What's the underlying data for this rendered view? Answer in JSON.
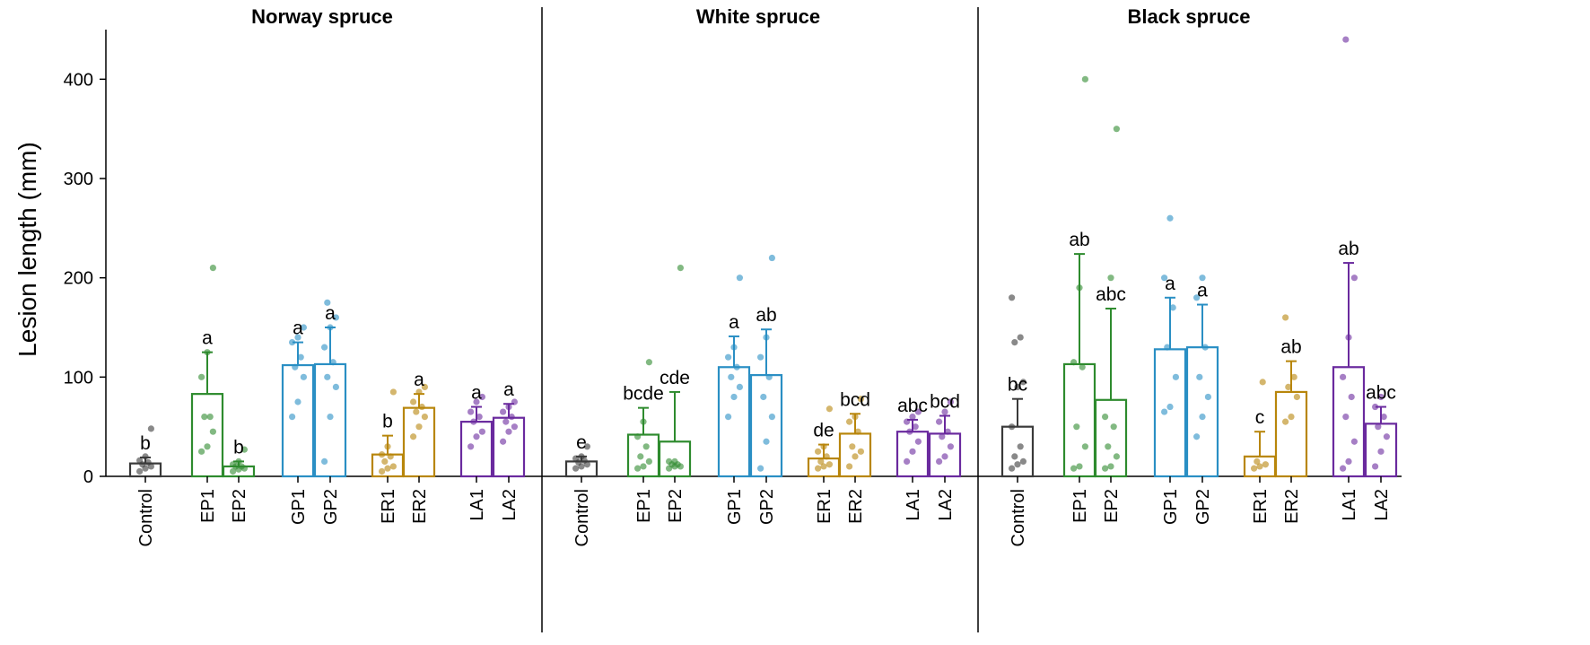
{
  "chart_data": {
    "type": "bar",
    "ylabel": "Lesion length (mm)",
    "ylim": [
      0,
      450
    ],
    "yticks": [
      0,
      100,
      200,
      300,
      400
    ],
    "categories": [
      "Control",
      "EP1",
      "EP2",
      "GP1",
      "GP2",
      "ER1",
      "ER2",
      "LA1",
      "LA2"
    ],
    "colors": {
      "Control": "#3a3a3a",
      "EP1": "#2e8b2e",
      "EP2": "#2e8b2e",
      "GP1": "#2a8fc4",
      "GP2": "#2a8fc4",
      "ER1": "#b8860b",
      "ER2": "#b8860b",
      "LA1": "#6a2a9e",
      "LA2": "#6a2a9e"
    },
    "panels": [
      {
        "title": "Norway spruce",
        "values": [
          13,
          83,
          10,
          112,
          113,
          22,
          69,
          55,
          59
        ],
        "errors": [
          6,
          42,
          5,
          23,
          37,
          19,
          14,
          15,
          14
        ],
        "letters": [
          "b",
          "a",
          "b",
          "a",
          "a",
          "b",
          "a",
          "a",
          "a"
        ],
        "points": [
          [
            5,
            8,
            10,
            12,
            14,
            16,
            20,
            48
          ],
          [
            25,
            30,
            45,
            60,
            60,
            100,
            125,
            210
          ],
          [
            5,
            7,
            8,
            10,
            10,
            12,
            15,
            27
          ],
          [
            60,
            75,
            100,
            110,
            120,
            135,
            140,
            150
          ],
          [
            15,
            60,
            90,
            100,
            115,
            130,
            150,
            160,
            175
          ],
          [
            5,
            8,
            10,
            15,
            20,
            22,
            30,
            85
          ],
          [
            40,
            50,
            60,
            65,
            70,
            75,
            85,
            90
          ],
          [
            30,
            40,
            45,
            55,
            60,
            65,
            75,
            80
          ],
          [
            35,
            45,
            50,
            55,
            60,
            65,
            70,
            75
          ]
        ]
      },
      {
        "title": "White spruce",
        "values": [
          15,
          42,
          35,
          110,
          102,
          18,
          43,
          45,
          43
        ],
        "errors": [
          5,
          27,
          50,
          31,
          46,
          14,
          20,
          12,
          18
        ],
        "letters": [
          "e",
          "bcde",
          "cde",
          "a",
          "ab",
          "de",
          "bcd",
          "abc",
          "bcd"
        ],
        "points": [
          [
            8,
            10,
            12,
            14,
            16,
            18,
            20,
            30
          ],
          [
            8,
            10,
            15,
            20,
            30,
            40,
            55,
            115
          ],
          [
            8,
            10,
            10,
            12,
            12,
            15,
            15,
            210
          ],
          [
            60,
            80,
            90,
            100,
            110,
            120,
            130,
            200
          ],
          [
            8,
            35,
            60,
            80,
            100,
            120,
            140,
            220
          ],
          [
            8,
            10,
            12,
            15,
            20,
            25,
            30,
            68
          ],
          [
            10,
            20,
            25,
            30,
            45,
            55,
            60,
            78
          ],
          [
            15,
            25,
            35,
            45,
            50,
            55,
            60,
            65
          ],
          [
            15,
            20,
            30,
            40,
            45,
            55,
            65,
            75
          ]
        ]
      },
      {
        "title": "Black spruce",
        "values": [
          50,
          113,
          77,
          128,
          130,
          20,
          85,
          110,
          53
        ],
        "errors": [
          28,
          111,
          92,
          52,
          43,
          25,
          31,
          105,
          17
        ],
        "letters": [
          "bc",
          "ab",
          "abc",
          "a",
          "a",
          "c",
          "ab",
          "ab",
          "abc"
        ],
        "points": [
          [
            8,
            12,
            15,
            20,
            30,
            50,
            90,
            95,
            135,
            140,
            180
          ],
          [
            8,
            10,
            30,
            50,
            110,
            115,
            190,
            400
          ],
          [
            8,
            10,
            20,
            30,
            50,
            60,
            200,
            350
          ],
          [
            65,
            70,
            100,
            130,
            170,
            200,
            260
          ],
          [
            40,
            60,
            80,
            100,
            130,
            180,
            200
          ],
          [
            8,
            10,
            12,
            15,
            95
          ],
          [
            55,
            60,
            80,
            90,
            100,
            160
          ],
          [
            8,
            15,
            35,
            60,
            80,
            100,
            140,
            200,
            440
          ],
          [
            10,
            25,
            40,
            50,
            60,
            70,
            80
          ]
        ]
      }
    ]
  }
}
